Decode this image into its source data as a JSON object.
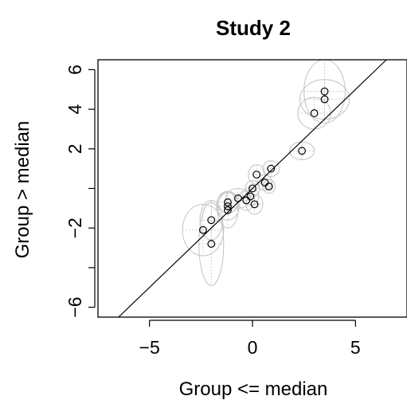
{
  "chart_data": {
    "type": "scatter",
    "title": "Study 2",
    "xlabel": "Group <= median",
    "ylabel": "Group > median",
    "xlim": [
      -7.5,
      7.5
    ],
    "ylim": [
      -6.5,
      6.5
    ],
    "x_ticks": [
      -5,
      0,
      5
    ],
    "x_tick_labels": [
      "−5",
      "0",
      "5"
    ],
    "y_ticks": [
      -6,
      -2,
      2,
      4,
      6
    ],
    "y_tick_labels": [
      "−6",
      "−2",
      "2",
      "4",
      "6"
    ],
    "y_ticks_unlabeled": [
      -4,
      0
    ],
    "grid": false,
    "reference_line": {
      "type": "identity",
      "slope": 1,
      "intercept": 0
    },
    "points": [
      {
        "x": 3.5,
        "y": 4.9,
        "rx": 1.0,
        "ry": 1.6
      },
      {
        "x": 3.5,
        "y": 4.5,
        "rx": 1.2,
        "ry": 1.0
      },
      {
        "x": 3.0,
        "y": 3.8,
        "rx": 0.8,
        "ry": 0.8
      },
      {
        "x": 2.4,
        "y": 1.9,
        "rx": 0.6,
        "ry": 0.45
      },
      {
        "x": 0.9,
        "y": 1.0,
        "rx": 0.4,
        "ry": 0.4
      },
      {
        "x": 0.2,
        "y": 0.7,
        "rx": 0.4,
        "ry": 0.5
      },
      {
        "x": 0.6,
        "y": 0.3,
        "rx": 0.35,
        "ry": 0.4
      },
      {
        "x": 0.8,
        "y": 0.1,
        "rx": 0.3,
        "ry": 0.35
      },
      {
        "x": 0.0,
        "y": 0.0,
        "rx": 0.35,
        "ry": 0.4
      },
      {
        "x": -0.1,
        "y": -0.4,
        "rx": 0.4,
        "ry": 0.45
      },
      {
        "x": -0.3,
        "y": -0.6,
        "rx": 0.4,
        "ry": 0.5
      },
      {
        "x": 0.1,
        "y": -0.8,
        "rx": 0.4,
        "ry": 0.5
      },
      {
        "x": -0.7,
        "y": -0.5,
        "rx": 0.6,
        "ry": 0.5
      },
      {
        "x": -1.2,
        "y": -0.7,
        "rx": 0.5,
        "ry": 0.55
      },
      {
        "x": -1.2,
        "y": -0.9,
        "rx": 0.55,
        "ry": 0.7
      },
      {
        "x": -1.2,
        "y": -1.1,
        "rx": 0.5,
        "ry": 0.9
      },
      {
        "x": -2.0,
        "y": -1.6,
        "rx": 0.55,
        "ry": 1.0
      },
      {
        "x": -2.4,
        "y": -2.1,
        "rx": 1.0,
        "ry": 1.3
      },
      {
        "x": -2.0,
        "y": -2.8,
        "rx": 0.6,
        "ry": 2.1
      }
    ],
    "colors": {
      "points": "#000000",
      "ellipses": "#c8c8c8",
      "ellipse_axes": "#c8c8c8",
      "line": "#000000",
      "frame": "#000000"
    }
  }
}
